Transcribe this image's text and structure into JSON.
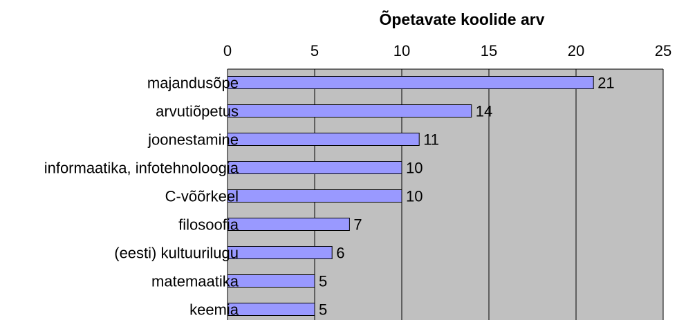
{
  "chart_data": {
    "type": "bar",
    "orientation": "horizontal",
    "xlabel": "Õpetavate koolide arv",
    "categories": [
      "majandusõpe",
      "arvutiõpetus",
      "joonestamine",
      "informaatika, infotehnoloogia",
      "C-võõrkeel",
      "filosoofia",
      "(eesti) kultuurilugu",
      "matemaatika",
      "keemia"
    ],
    "values": [
      21,
      14,
      11,
      10,
      10,
      7,
      6,
      5,
      5
    ],
    "color": "#9999ff",
    "xlim": [
      0,
      25
    ],
    "xticks": [
      0,
      5,
      10,
      15,
      20,
      25
    ],
    "grid": true,
    "plot_background": "#c0c0c0"
  }
}
